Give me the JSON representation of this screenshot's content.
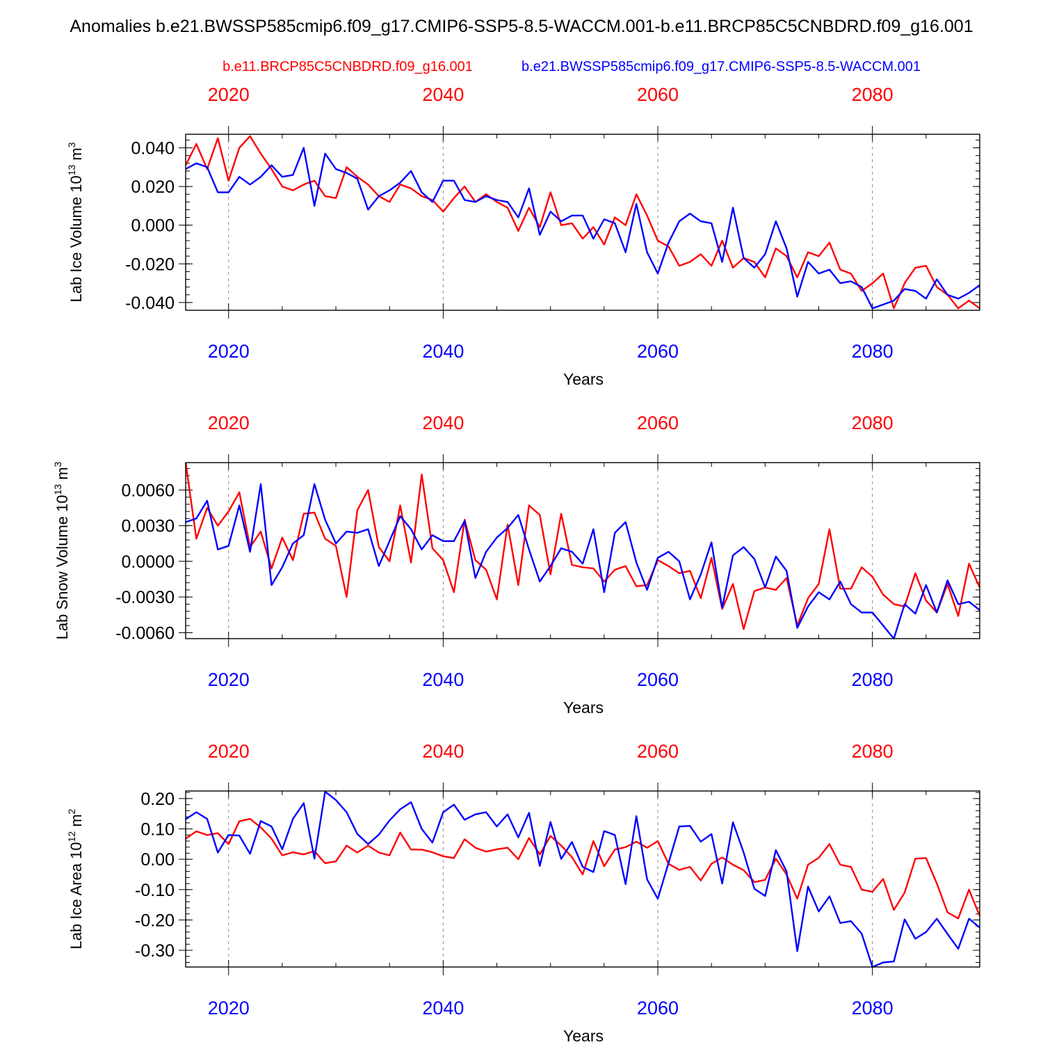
{
  "title": "Anomalies b.e21.BWSSP585cmip6.f09_g17.CMIP6-SSP5-8.5-WACCM.001-b.e11.BRCP85C5CNBDRD.f09_g16.001",
  "legend": {
    "red_label": "b.e11.BRCP85C5CNBDRD.f09_g16.001",
    "blue_label": "b.e21.BWSSP585cmip6.f09_g17.CMIP6-SSP5-8.5-WACCM.001"
  },
  "colors": {
    "red": "#ff0000",
    "blue": "#0000ff",
    "frame": "#000000",
    "grid": "#888888"
  },
  "chart_data": [
    {
      "type": "line",
      "ylabel": "Lab Ice Volume 10^13 m^3",
      "ylabel_main": "Lab Ice Volume 10",
      "ylabel_exp": "13",
      "ylabel_unit": " m",
      "ylabel_unit_exp": "3",
      "xlabel": "Years",
      "xlim": [
        2016,
        2090
      ],
      "ylim": [
        -0.044,
        0.047
      ],
      "yticks": [
        0.04,
        0.02,
        0.0,
        -0.02,
        -0.04
      ],
      "yticklabels": [
        "0.040",
        "0.020",
        "0.000",
        "-0.020",
        "-0.040"
      ],
      "xticks": [
        2020,
        2040,
        2060,
        2080
      ],
      "xticklabels": [
        "2020",
        "2040",
        "2060",
        "2080"
      ],
      "series": [
        {
          "name": "b.e11.BRCP85C5CNBDRD.f09_g16.001",
          "color": "red",
          "x_start": 2016,
          "values": [
            0.031,
            0.042,
            0.029,
            0.045,
            0.023,
            0.04,
            0.046,
            0.037,
            0.029,
            0.02,
            0.018,
            0.021,
            0.023,
            0.015,
            0.014,
            0.03,
            0.025,
            0.021,
            0.015,
            0.012,
            0.021,
            0.019,
            0.015,
            0.013,
            0.007,
            0.014,
            0.02,
            0.012,
            0.016,
            0.012,
            0.009,
            -0.003,
            0.009,
            -0.001,
            0.017,
            0.0,
            0.001,
            -0.007,
            -0.001,
            -0.01,
            0.004,
            0.0,
            0.016,
            0.005,
            -0.008,
            -0.011,
            -0.021,
            -0.019,
            -0.015,
            -0.021,
            -0.008,
            -0.022,
            -0.017,
            -0.019,
            -0.027,
            -0.012,
            -0.016,
            -0.027,
            -0.014,
            -0.016,
            -0.009,
            -0.023,
            -0.025,
            -0.034,
            -0.03,
            -0.025,
            -0.043,
            -0.03,
            -0.022,
            -0.021,
            -0.032,
            -0.036,
            -0.043,
            -0.039,
            -0.043
          ]
        },
        {
          "name": "b.e21.BWSSP585cmip6.f09_g17.CMIP6-SSP5-8.5-WACCM.001",
          "color": "blue",
          "x_start": 2016,
          "values": [
            0.029,
            0.032,
            0.03,
            0.017,
            0.017,
            0.025,
            0.021,
            0.025,
            0.031,
            0.025,
            0.026,
            0.04,
            0.01,
            0.037,
            0.029,
            0.027,
            0.024,
            0.008,
            0.015,
            0.018,
            0.022,
            0.028,
            0.017,
            0.012,
            0.023,
            0.023,
            0.013,
            0.012,
            0.015,
            0.013,
            0.012,
            0.004,
            0.019,
            -0.005,
            0.007,
            0.002,
            0.005,
            0.005,
            -0.007,
            0.003,
            0.001,
            -0.014,
            0.011,
            -0.014,
            -0.025,
            -0.009,
            0.002,
            0.006,
            0.002,
            0.001,
            -0.019,
            0.009,
            -0.017,
            -0.022,
            -0.015,
            0.002,
            -0.012,
            -0.037,
            -0.019,
            -0.025,
            -0.023,
            -0.03,
            -0.029,
            -0.032,
            -0.043,
            -0.041,
            -0.039,
            -0.033,
            -0.034,
            -0.038,
            -0.028,
            -0.036,
            -0.038,
            -0.035,
            -0.031
          ]
        }
      ]
    },
    {
      "type": "line",
      "ylabel": "Lab Snow Volume 10^13 m^3",
      "ylabel_main": "Lab Snow Volume 10",
      "ylabel_exp": "13",
      "ylabel_unit": " m",
      "ylabel_unit_exp": "3",
      "xlabel": "Years",
      "xlim": [
        2016,
        2090
      ],
      "ylim": [
        -0.0065,
        0.0083
      ],
      "yticks": [
        0.006,
        0.003,
        0.0,
        -0.003,
        -0.006
      ],
      "yticklabels": [
        "0.0060",
        "0.0030",
        "0.0000",
        "-0.0030",
        "-0.0060"
      ],
      "xticks": [
        2020,
        2040,
        2060,
        2080
      ],
      "xticklabels": [
        "2020",
        "2040",
        "2060",
        "2080"
      ],
      "series": [
        {
          "name": "b.e11.BRCP85C5CNBDRD.f09_g16.001",
          "color": "red",
          "x_start": 2016,
          "values": [
            0.0083,
            0.0019,
            0.0045,
            0.003,
            0.0042,
            0.0058,
            0.0012,
            0.0025,
            -0.0006,
            0.002,
            0.0001,
            0.004,
            0.0041,
            0.0019,
            0.0013,
            -0.003,
            0.0043,
            0.006,
            0.0012,
            0.0,
            0.0047,
            -0.0001,
            0.0073,
            0.0011,
            0.0001,
            -0.0026,
            0.0035,
            0.0001,
            -0.0007,
            -0.0032,
            0.0031,
            -0.002,
            0.0047,
            0.0039,
            -0.0011,
            0.004,
            -0.0003,
            -0.0005,
            -0.0006,
            -0.0017,
            -0.0007,
            -0.0004,
            -0.0021,
            -0.002,
            0.0001,
            -0.0004,
            -0.001,
            -0.0008,
            -0.0031,
            0.0003,
            -0.004,
            -0.0019,
            -0.0057,
            -0.0025,
            -0.0022,
            -0.0024,
            -0.0014,
            -0.0054,
            -0.0031,
            -0.0019,
            0.0027,
            -0.0023,
            -0.0023,
            -0.0005,
            -0.0013,
            -0.0028,
            -0.0036,
            -0.0038,
            -0.001,
            -0.0033,
            -0.0043,
            -0.0019,
            -0.0046,
            -0.0002,
            -0.0022
          ]
        },
        {
          "name": "b.e21.BWSSP585cmip6.f09_g17.CMIP6-SSP5-8.5-WACCM.001",
          "color": "blue",
          "x_start": 2016,
          "values": [
            0.0033,
            0.0036,
            0.0051,
            0.001,
            0.0013,
            0.0047,
            0.0008,
            0.0065,
            -0.002,
            -0.0005,
            0.0015,
            0.0022,
            0.0065,
            0.0035,
            0.0015,
            0.0025,
            0.0024,
            0.0027,
            -0.0004,
            0.0017,
            0.0038,
            0.0027,
            0.001,
            0.0022,
            0.0017,
            0.0017,
            0.0034,
            -0.0014,
            0.0008,
            0.002,
            0.0028,
            0.0039,
            0.001,
            -0.0017,
            -0.0004,
            0.0011,
            0.0008,
            -0.0002,
            0.0027,
            -0.0026,
            0.0024,
            0.0033,
            -0.0001,
            -0.0024,
            0.0003,
            0.0008,
            0.0,
            -0.0032,
            -0.0011,
            0.0016,
            -0.0039,
            0.0005,
            0.0012,
            0.0002,
            -0.0022,
            0.0004,
            -0.0008,
            -0.0056,
            -0.0038,
            -0.0026,
            -0.0032,
            -0.0017,
            -0.0036,
            -0.0043,
            -0.0043,
            -0.0054,
            -0.0065,
            -0.0036,
            -0.0044,
            -0.002,
            -0.0043,
            -0.0016,
            -0.0036,
            -0.0034,
            -0.0041
          ]
        }
      ]
    },
    {
      "type": "line",
      "ylabel": "Lab Ice Area 10^12 m^2",
      "ylabel_main": "Lab Ice Area 10",
      "ylabel_exp": "12",
      "ylabel_unit": " m",
      "ylabel_unit_exp": "2",
      "xlabel": "Years",
      "xlim": [
        2016,
        2090
      ],
      "ylim": [
        -0.355,
        0.225
      ],
      "yticks": [
        0.2,
        0.1,
        0.0,
        -0.1,
        -0.2,
        -0.3
      ],
      "yticklabels": [
        "0.20",
        "0.10",
        "0.00",
        "-0.10",
        "-0.20",
        "-0.30"
      ],
      "xticks": [
        2020,
        2040,
        2060,
        2080
      ],
      "xticklabels": [
        "2020",
        "2040",
        "2060",
        "2080"
      ],
      "series": [
        {
          "name": "b.e11.BRCP85C5CNBDRD.f09_g16.001",
          "color": "red",
          "x_start": 2016,
          "values": [
            0.068,
            0.092,
            0.08,
            0.086,
            0.05,
            0.125,
            0.133,
            0.105,
            0.068,
            0.013,
            0.023,
            0.016,
            0.027,
            -0.013,
            -0.007,
            0.045,
            0.022,
            0.045,
            0.022,
            0.013,
            0.088,
            0.032,
            0.032,
            0.023,
            0.01,
            0.004,
            0.066,
            0.038,
            0.025,
            0.033,
            0.038,
            0.0,
            0.07,
            0.016,
            0.077,
            0.045,
            0.007,
            -0.05,
            0.06,
            -0.023,
            0.032,
            0.04,
            0.058,
            0.038,
            0.06,
            -0.015,
            -0.035,
            -0.025,
            -0.07,
            -0.015,
            0.006,
            -0.018,
            -0.036,
            -0.075,
            -0.068,
            0.002,
            -0.05,
            -0.13,
            -0.018,
            0.005,
            0.05,
            -0.018,
            -0.025,
            -0.1,
            -0.107,
            -0.065,
            -0.167,
            -0.11,
            0.002,
            0.004,
            -0.08,
            -0.175,
            -0.195,
            -0.1,
            -0.187
          ]
        },
        {
          "name": "b.e21.BWSSP585cmip6.f09_g17.CMIP6-SSP5-8.5-WACCM.001",
          "color": "blue",
          "x_start": 2016,
          "values": [
            0.132,
            0.155,
            0.133,
            0.022,
            0.08,
            0.078,
            0.018,
            0.126,
            0.108,
            0.033,
            0.133,
            0.185,
            0.002,
            0.223,
            0.195,
            0.155,
            0.083,
            0.05,
            0.081,
            0.128,
            0.165,
            0.188,
            0.1,
            0.055,
            0.155,
            0.18,
            0.13,
            0.148,
            0.155,
            0.108,
            0.148,
            0.072,
            0.153,
            -0.022,
            0.123,
            0.001,
            0.057,
            -0.025,
            -0.042,
            0.093,
            0.08,
            -0.082,
            0.142,
            -0.066,
            -0.13,
            -0.012,
            0.108,
            0.11,
            0.058,
            0.083,
            -0.08,
            0.122,
            0.022,
            -0.097,
            -0.121,
            0.03,
            -0.04,
            -0.303,
            -0.09,
            -0.172,
            -0.122,
            -0.21,
            -0.204,
            -0.245,
            -0.355,
            -0.34,
            -0.337,
            -0.198,
            -0.262,
            -0.24,
            -0.196,
            -0.246,
            -0.295,
            -0.196,
            -0.225
          ]
        }
      ]
    }
  ]
}
